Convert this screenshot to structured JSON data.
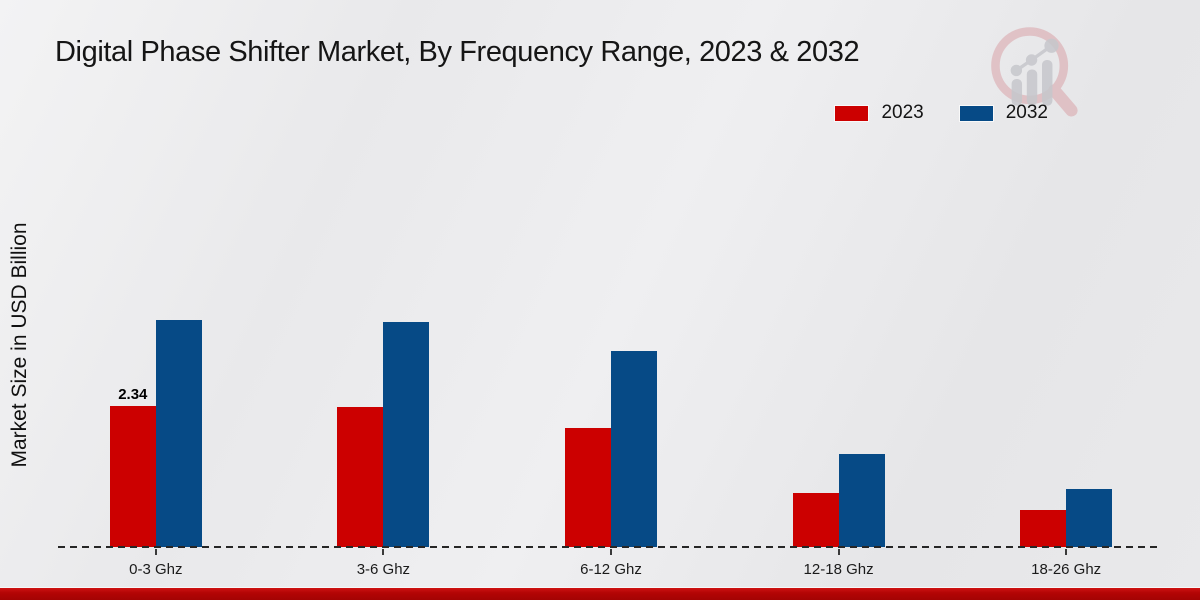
{
  "title": "Digital Phase Shifter Market, By Frequency Range, 2023 & 2032",
  "y_axis_label": "Market Size in USD Billion",
  "legend": {
    "items": [
      {
        "label": "2023",
        "color": "#cc0000"
      },
      {
        "label": "2032",
        "color": "#064a86"
      }
    ]
  },
  "watermark_icon": "magnifier-growth-chart-logo",
  "colors": {
    "series_2023": "#cc0000",
    "series_2032": "#064a86",
    "footer_band": "#b30505",
    "axis_dash": "#262626",
    "background": "#e9e9eb"
  },
  "chart_data": {
    "type": "bar",
    "title": "Digital Phase Shifter Market, By Frequency Range, 2023 & 2032",
    "xlabel": "",
    "ylabel": "Market Size in USD Billion",
    "categories": [
      "0-3 Ghz",
      "3-6 Ghz",
      "6-12 Ghz",
      "12-18 Ghz",
      "18-26 Ghz"
    ],
    "series": [
      {
        "name": "2023",
        "color": "#cc0000",
        "values": [
          2.34,
          2.32,
          1.97,
          0.89,
          0.61
        ],
        "data_labels": [
          "2.34",
          "",
          "",
          "",
          ""
        ]
      },
      {
        "name": "2032",
        "color": "#064a86",
        "values": [
          3.77,
          3.74,
          3.25,
          1.55,
          0.97
        ],
        "data_labels": [
          "",
          "",
          "",
          "",
          ""
        ]
      }
    ],
    "ylim": [
      0,
      4.2
    ],
    "grid": false,
    "legend_position": "top-right",
    "baseline_style": "dashed",
    "value_axis_ticks_visible": false
  }
}
